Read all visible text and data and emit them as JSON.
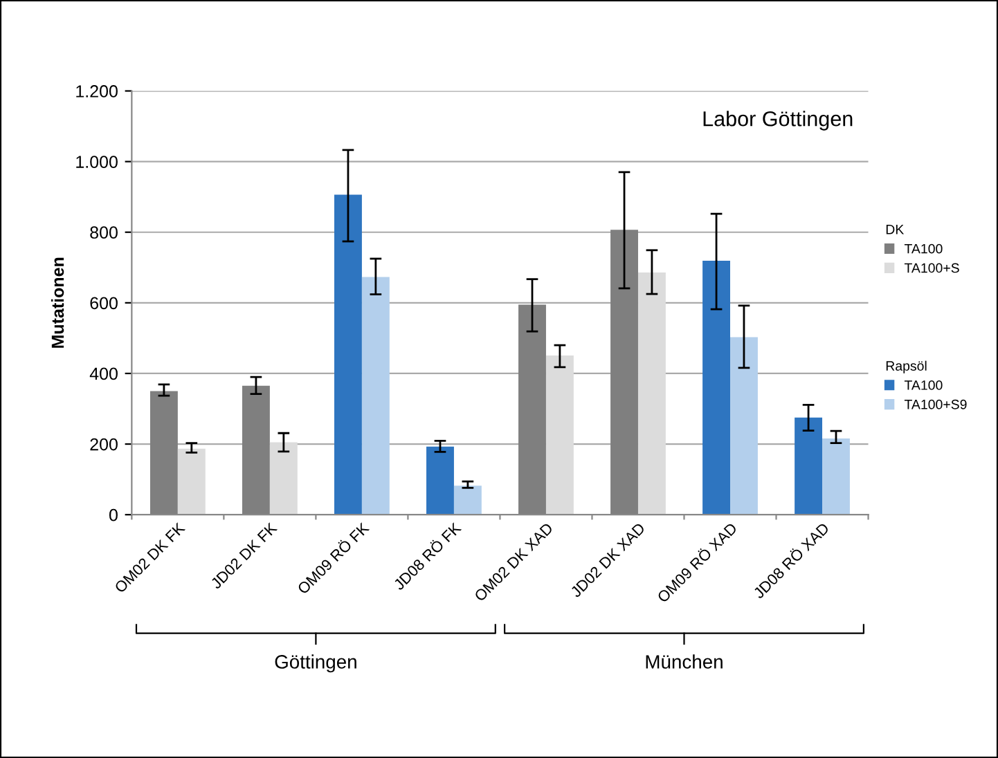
{
  "chart_data": {
    "type": "bar",
    "ylabel": "Mutationen",
    "categories": [
      "OM02 DK FK",
      "JD02 DK FK",
      "OM09 RÖ FK",
      "JD08 RÖ FK",
      "OM02 DK XAD",
      "JD02 DK XAD",
      "OM09 RÖ XAD",
      "JD08 RÖ XAD"
    ],
    "series": [
      {
        "name": "TA100",
        "color": "#7f7f7f",
        "values": [
          350,
          365,
          null,
          null,
          595,
          807,
          null,
          null
        ],
        "errors": [
          [
            337,
            369
          ],
          [
            342,
            390
          ],
          null,
          null,
          [
            519,
            667
          ],
          [
            641,
            970
          ],
          null,
          null
        ]
      },
      {
        "name": "TA100+S",
        "color": "#dcdcdc",
        "values": [
          187,
          205,
          null,
          null,
          451,
          686,
          null,
          null
        ],
        "errors": [
          [
            176,
            203
          ],
          [
            179,
            231
          ],
          null,
          null,
          [
            418,
            480
          ],
          [
            625,
            749
          ],
          null,
          null
        ]
      },
      {
        "name": "TA100",
        "color": "#2e75c0",
        "values": [
          null,
          null,
          906,
          193,
          null,
          null,
          719,
          275
        ],
        "errors": [
          null,
          null,
          [
            774,
            1033
          ],
          [
            178,
            209
          ],
          null,
          null,
          [
            582,
            852
          ],
          [
            238,
            311
          ]
        ]
      },
      {
        "name": "TA100+S9",
        "color": "#b3cfec",
        "values": [
          null,
          null,
          673,
          82,
          null,
          null,
          503,
          216
        ],
        "errors": [
          null,
          null,
          [
            624,
            725
          ],
          [
            76,
            94
          ],
          null,
          null,
          [
            416,
            592
          ],
          [
            203,
            237
          ]
        ]
      }
    ],
    "ylim": [
      0,
      1200
    ],
    "yticks": [
      0,
      200,
      400,
      600,
      800,
      {
        "value": 1000,
        "label": "1.000"
      },
      {
        "value": 1200,
        "label": "1.200"
      }
    ],
    "grid": "y",
    "legend": "right",
    "annotations": [
      "Labor Göttingen",
      "DK",
      "Rapsöl",
      "Göttingen",
      "München"
    ]
  }
}
